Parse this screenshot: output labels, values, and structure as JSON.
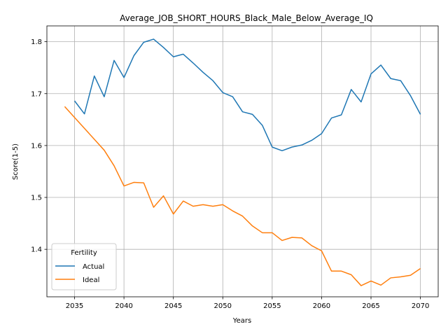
{
  "chart_data": {
    "type": "line",
    "title": "Average_JOB_SHORT_HOURS_Black_Male_Below_Average_IQ",
    "xlabel": "Years",
    "ylabel": "Score(1-5)",
    "xlim": [
      2032.2,
      2071.8
    ],
    "ylim": [
      1.3085,
      1.8305
    ],
    "xticks": [
      2035,
      2040,
      2045,
      2050,
      2055,
      2060,
      2065,
      2070
    ],
    "yticks": [
      1.4,
      1.5,
      1.6,
      1.7,
      1.8
    ],
    "ytick_labels": [
      "1.4",
      "1.5",
      "1.6",
      "1.7",
      "1.8"
    ],
    "grid": true,
    "legend": {
      "title": "Fertility",
      "position": "lower left"
    },
    "colors": {
      "Actual": "#1f77b4",
      "Ideal": "#ff7f0e"
    },
    "series": [
      {
        "name": "Actual",
        "x": [
          2035,
          2036,
          2037,
          2038,
          2039,
          2040,
          2041,
          2042,
          2043,
          2044,
          2045,
          2046,
          2047,
          2048,
          2049,
          2050,
          2051,
          2052,
          2053,
          2054,
          2055,
          2056,
          2057,
          2058,
          2059,
          2060,
          2061,
          2062,
          2063,
          2064,
          2065,
          2066,
          2067,
          2068,
          2069,
          2070
        ],
        "values": [
          1.686,
          1.661,
          1.734,
          1.694,
          1.764,
          1.731,
          1.773,
          1.799,
          1.805,
          1.789,
          1.771,
          1.776,
          1.759,
          1.741,
          1.725,
          1.702,
          1.694,
          1.665,
          1.66,
          1.639,
          1.597,
          1.59,
          1.597,
          1.601,
          1.61,
          1.623,
          1.653,
          1.659,
          1.708,
          1.684,
          1.738,
          1.755,
          1.729,
          1.725,
          1.696,
          1.66
        ]
      },
      {
        "name": "Ideal",
        "x": [
          2034,
          2035,
          2036,
          2037,
          2038,
          2039,
          2040,
          2041,
          2042,
          2043,
          2044,
          2045,
          2046,
          2047,
          2048,
          2049,
          2050,
          2051,
          2052,
          2053,
          2054,
          2055,
          2056,
          2057,
          2058,
          2059,
          2060,
          2061,
          2062,
          2063,
          2064,
          2065,
          2066,
          2067,
          2068,
          2069,
          2070
        ],
        "values": [
          1.675,
          1.654,
          1.633,
          1.612,
          1.591,
          1.561,
          1.522,
          1.529,
          1.528,
          1.481,
          1.503,
          1.468,
          1.493,
          1.483,
          1.486,
          1.483,
          1.486,
          1.474,
          1.464,
          1.445,
          1.432,
          1.432,
          1.417,
          1.423,
          1.422,
          1.407,
          1.397,
          1.358,
          1.358,
          1.351,
          1.33,
          1.339,
          1.331,
          1.345,
          1.347,
          1.35,
          1.363
        ]
      }
    ]
  }
}
